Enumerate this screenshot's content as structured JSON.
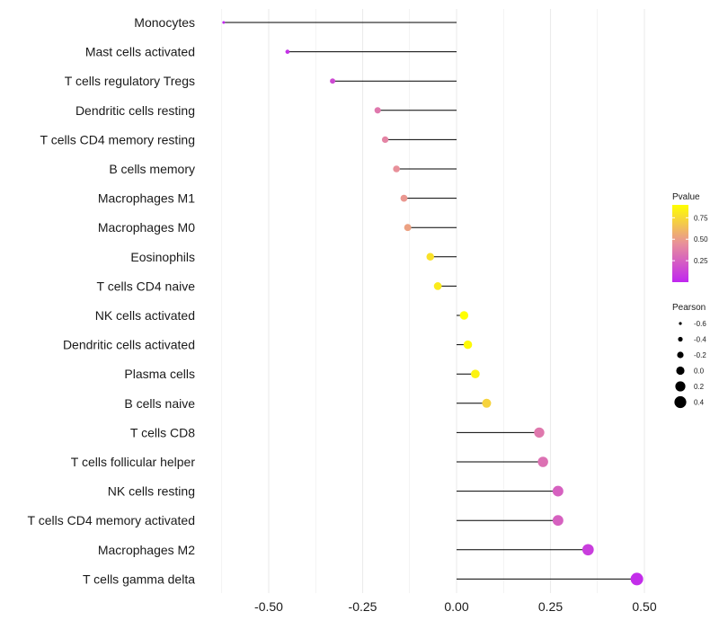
{
  "chart_data": {
    "type": "lollipop",
    "xlim": [
      -0.62,
      0.5
    ],
    "x_ticks": [
      -0.5,
      -0.25,
      0.0,
      0.25,
      0.5
    ],
    "x_tick_labels": [
      "-0.50",
      "-0.25",
      "0.00",
      "0.25",
      "0.50"
    ],
    "grid": true,
    "categories": [
      "Monocytes",
      "Mast cells activated",
      "T cells regulatory  Tregs ",
      "Dendritic cells resting",
      "T cells CD4 memory resting",
      "B cells memory",
      "Macrophages M1",
      "Macrophages M0",
      "Eosinophils",
      "T cells CD4 naive",
      "NK cells activated",
      "Dendritic cells activated",
      "Plasma cells",
      "B cells naive",
      "T cells CD8",
      "T cells follicular helper",
      "NK cells resting",
      "T cells CD4 memory activated",
      "Macrophages M2",
      "T cells gamma delta"
    ],
    "pearson": [
      -0.62,
      -0.45,
      -0.33,
      -0.21,
      -0.19,
      -0.16,
      -0.14,
      -0.13,
      -0.07,
      -0.05,
      0.02,
      0.03,
      0.05,
      0.08,
      0.22,
      0.23,
      0.27,
      0.27,
      0.35,
      0.48
    ],
    "pvalue": [
      0.01,
      0.05,
      0.15,
      0.35,
      0.4,
      0.45,
      0.48,
      0.52,
      0.78,
      0.82,
      0.92,
      0.88,
      0.85,
      0.72,
      0.35,
      0.32,
      0.25,
      0.25,
      0.1,
      0.03
    ],
    "legend": {
      "color_title": "Pvalue",
      "color_ticks": [
        0.25,
        0.5,
        0.75
      ],
      "color_tick_labels": [
        "0.25",
        "0.50",
        "0.75"
      ],
      "color_range": [
        0.0,
        0.9
      ],
      "color_low": "#c026f0",
      "color_mid": "#e8909a",
      "color_high": "#ffff00",
      "size_title": "Pearson",
      "size_ticks": [
        -0.6,
        -0.4,
        -0.2,
        0.0,
        0.2,
        0.4
      ],
      "size_tick_labels": [
        "-0.6",
        "-0.4",
        "-0.2",
        "0.0",
        "0.2",
        "0.4"
      ],
      "placement": "right"
    },
    "segment_color": "#000000",
    "grid_color": "#ebebeb"
  }
}
